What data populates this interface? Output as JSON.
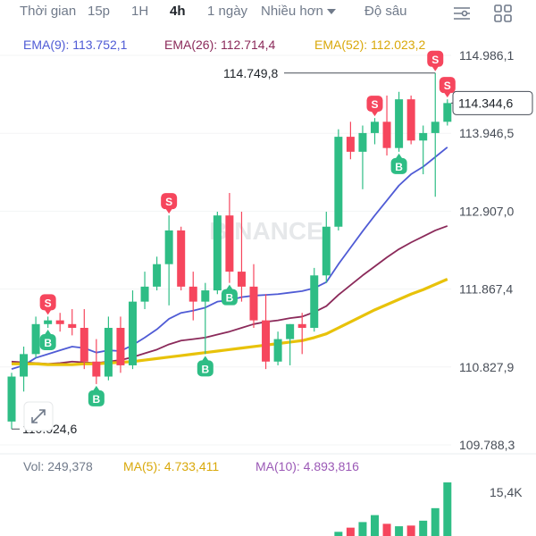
{
  "toolbar": {
    "timeframes": [
      {
        "label": "Thời gian"
      },
      {
        "label": "15p"
      },
      {
        "label": "1H"
      },
      {
        "label": "4h"
      },
      {
        "label": "1 ngày"
      },
      {
        "label": "Nhiều hơn"
      }
    ],
    "active_timeframe": "4h",
    "depth_label": "Độ sâu"
  },
  "indicators": {
    "ema9": {
      "label": "EMA(9): 113.752,1",
      "color": "#4f5bd5"
    },
    "ema26": {
      "label": "EMA(26): 112.714,4",
      "color": "#8b2a5a"
    },
    "ema52": {
      "label": "EMA(52): 112.023,2",
      "color": "#e0b80a"
    }
  },
  "price_axis": {
    "labels": [
      "114.986,1",
      "113.946,5",
      "112.907,0",
      "111.867,4",
      "110.827,9",
      "109.788,3"
    ],
    "current_price": "114.344,6",
    "high_marker": "114.749,8",
    "low_marker": "110.024,6"
  },
  "watermark": "BINANCE",
  "volume": {
    "vol_label": "Vol: 249,378",
    "ma5_label": "MA(5): 4.733,411",
    "ma10_label": "MA(10): 4.893,816",
    "axis_label": "15,4K",
    "ma5_color": "#e0b80a",
    "ma10_color": "#9b59b6"
  },
  "colors": {
    "up": "#2ebd85",
    "down": "#f6465d"
  },
  "markers": {
    "buy": "B",
    "sell": "S"
  },
  "chart_data": {
    "type": "candlestick",
    "y_unit": "price",
    "ylim": [
      109788.3,
      114986.1
    ],
    "candles": [
      {
        "o": 110100,
        "h": 110750,
        "l": 110000,
        "c": 110700
      },
      {
        "o": 110700,
        "h": 111100,
        "l": 110500,
        "c": 111000
      },
      {
        "o": 111000,
        "h": 111500,
        "l": 110950,
        "c": 111400
      },
      {
        "o": 111400,
        "h": 111500,
        "l": 111350,
        "c": 111450
      },
      {
        "o": 111450,
        "h": 111550,
        "l": 111300,
        "c": 111400
      },
      {
        "o": 111400,
        "h": 111600,
        "l": 111250,
        "c": 111350
      },
      {
        "o": 111350,
        "h": 111600,
        "l": 110800,
        "c": 110900
      },
      {
        "o": 110900,
        "h": 111200,
        "l": 110600,
        "c": 110700
      },
      {
        "o": 110700,
        "h": 111500,
        "l": 110650,
        "c": 111350
      },
      {
        "o": 111350,
        "h": 111500,
        "l": 110750,
        "c": 110850
      },
      {
        "o": 110850,
        "h": 111850,
        "l": 110800,
        "c": 111700
      },
      {
        "o": 111700,
        "h": 112100,
        "l": 111600,
        "c": 111900
      },
      {
        "o": 111900,
        "h": 112300,
        "l": 111850,
        "c": 112200
      },
      {
        "o": 112200,
        "h": 112850,
        "l": 111650,
        "c": 112650
      },
      {
        "o": 112650,
        "h": 112700,
        "l": 111850,
        "c": 111900
      },
      {
        "o": 111900,
        "h": 112100,
        "l": 111450,
        "c": 111700
      },
      {
        "o": 111700,
        "h": 111950,
        "l": 111000,
        "c": 111850
      },
      {
        "o": 111850,
        "h": 112900,
        "l": 111800,
        "c": 112850
      },
      {
        "o": 112850,
        "h": 113150,
        "l": 111950,
        "c": 112100
      },
      {
        "o": 112100,
        "h": 112900,
        "l": 111700,
        "c": 111900
      },
      {
        "o": 111900,
        "h": 112200,
        "l": 111350,
        "c": 111450
      },
      {
        "o": 111450,
        "h": 111800,
        "l": 110800,
        "c": 110900
      },
      {
        "o": 110900,
        "h": 111300,
        "l": 110850,
        "c": 111200
      },
      {
        "o": 111200,
        "h": 111400,
        "l": 110850,
        "c": 111400
      },
      {
        "o": 111400,
        "h": 111550,
        "l": 111000,
        "c": 111350
      },
      {
        "o": 111350,
        "h": 112150,
        "l": 111300,
        "c": 112050
      },
      {
        "o": 112050,
        "h": 112900,
        "l": 111950,
        "c": 112700
      },
      {
        "o": 112700,
        "h": 114000,
        "l": 112650,
        "c": 113900
      },
      {
        "o": 113900,
        "h": 114100,
        "l": 113600,
        "c": 113700
      },
      {
        "o": 113700,
        "h": 114050,
        "l": 113200,
        "c": 113950
      },
      {
        "o": 113950,
        "h": 114150,
        "l": 113800,
        "c": 114100
      },
      {
        "o": 114100,
        "h": 114450,
        "l": 113650,
        "c": 113750
      },
      {
        "o": 113750,
        "h": 114500,
        "l": 113700,
        "c": 114400
      },
      {
        "o": 114400,
        "h": 114450,
        "l": 113800,
        "c": 113850
      },
      {
        "o": 113850,
        "h": 114050,
        "l": 113400,
        "c": 113950
      },
      {
        "o": 113950,
        "h": 114750,
        "l": 113100,
        "c": 114100
      },
      {
        "o": 114100,
        "h": 114400,
        "l": 114050,
        "c": 114350
      }
    ],
    "ema9": [
      110800,
      110850,
      110950,
      111000,
      111050,
      111100,
      111080,
      111020,
      111050,
      111040,
      111120,
      111220,
      111330,
      111470,
      111550,
      111580,
      111620,
      111700,
      111720,
      111760,
      111780,
      111790,
      111800,
      111820,
      111840,
      111880,
      111960,
      112200,
      112420,
      112640,
      112850,
      113050,
      113250,
      113400,
      113500,
      113630,
      113760
    ],
    "ema26": [
      110900,
      110890,
      110880,
      110870,
      110880,
      110900,
      110890,
      110880,
      110900,
      110920,
      110960,
      111010,
      111060,
      111130,
      111180,
      111200,
      111220,
      111260,
      111300,
      111350,
      111400,
      111430,
      111450,
      111480,
      111500,
      111560,
      111640,
      111790,
      111920,
      112050,
      112170,
      112290,
      112400,
      112490,
      112570,
      112650,
      112710
    ],
    "ema52": [
      110870,
      110870,
      110870,
      110860,
      110860,
      110860,
      110870,
      110870,
      110880,
      110890,
      110900,
      110920,
      110940,
      110960,
      110980,
      111000,
      111020,
      111040,
      111060,
      111080,
      111100,
      111120,
      111140,
      111160,
      111180,
      111220,
      111270,
      111350,
      111430,
      111510,
      111590,
      111660,
      111730,
      111800,
      111860,
      111930,
      112000
    ],
    "buy_signals": [
      3,
      7,
      16,
      18,
      32
    ],
    "sell_signals": [
      3,
      13,
      30,
      35,
      36
    ],
    "volume": [
      1200,
      2400,
      4000,
      6000,
      3500,
      2800,
      3000,
      4400,
      8000,
      15400
    ]
  }
}
